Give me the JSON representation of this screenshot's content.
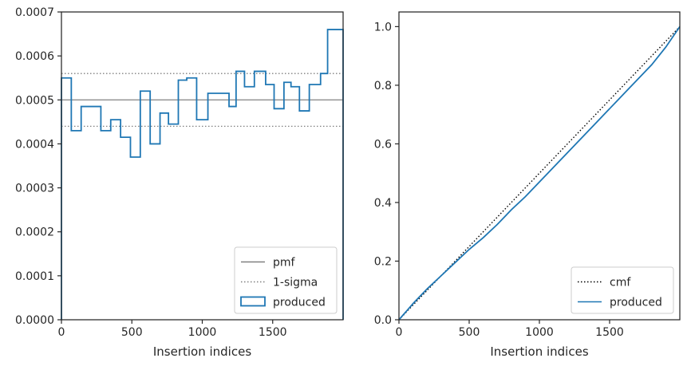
{
  "chart_data": [
    {
      "type": "histogram-step",
      "xlabel": "Insertion indices",
      "ylabel": "",
      "xlim": [
        0,
        2000
      ],
      "ylim": [
        0,
        0.0007
      ],
      "xticks": [
        0,
        500,
        1000,
        1500
      ],
      "xtick_labels": [
        "0",
        "500",
        "1000",
        "1500"
      ],
      "yticks": [
        0,
        0.0001,
        0.0002,
        0.0003,
        0.0004,
        0.0005,
        0.0006,
        0.0007
      ],
      "ytick_labels": [
        "0.0000",
        "0.0001",
        "0.0002",
        "0.0003",
        "0.0004",
        "0.0005",
        "0.0006",
        "0.0007"
      ],
      "grid": false,
      "legend_position": "lower-right",
      "lines": [
        {
          "name": "pmf",
          "y": 0.0005,
          "style": "solid",
          "color": "#808080"
        },
        {
          "name": "1-sigma",
          "y": [
            0.00044,
            0.00056
          ],
          "style": "dotted",
          "color": "#808080"
        }
      ],
      "series": [
        {
          "name": "produced",
          "color": "#1f77b4",
          "bin_edges": [
            0,
            70,
            140,
            280,
            350,
            420,
            490,
            560,
            630,
            700,
            760,
            830,
            890,
            960,
            1040,
            1190,
            1240,
            1300,
            1370,
            1450,
            1510,
            1580,
            1630,
            1690,
            1760,
            1840,
            1890,
            1930,
            2000
          ],
          "values": [
            0.00055,
            0.00043,
            0.000485,
            0.00043,
            0.000455,
            0.000415,
            0.00037,
            0.00052,
            0.0004,
            0.00047,
            0.000445,
            0.000545,
            0.00055,
            0.000455,
            0.000515,
            0.000485,
            0.000565,
            0.00053,
            0.000565,
            0.000535,
            0.00048,
            0.00054,
            0.00053,
            0.000475,
            0.000535,
            0.00056,
            0.00066,
            0.00066
          ]
        }
      ]
    },
    {
      "type": "line",
      "xlabel": "Insertion indices",
      "ylabel": "",
      "xlim": [
        0,
        2000
      ],
      "ylim": [
        0,
        1.05
      ],
      "xticks": [
        0,
        500,
        1000,
        1500
      ],
      "xtick_labels": [
        "0",
        "500",
        "1000",
        "1500"
      ],
      "yticks": [
        0,
        0.2,
        0.4,
        0.6,
        0.8,
        1.0
      ],
      "ytick_labels": [
        "0.0",
        "0.2",
        "0.4",
        "0.6",
        "0.8",
        "1.0"
      ],
      "grid": false,
      "legend_position": "lower-right",
      "series": [
        {
          "name": "cmf",
          "style": "dotted",
          "color": "#000000",
          "x": [
            0,
            2000
          ],
          "y": [
            0,
            1.0
          ]
        },
        {
          "name": "produced",
          "style": "solid",
          "color": "#1f77b4",
          "x": [
            0,
            100,
            200,
            300,
            400,
            500,
            600,
            700,
            800,
            900,
            1000,
            1100,
            1200,
            1300,
            1400,
            1500,
            1600,
            1700,
            1800,
            1900,
            2000
          ],
          "y": [
            0,
            0.055,
            0.105,
            0.15,
            0.195,
            0.24,
            0.28,
            0.325,
            0.375,
            0.42,
            0.47,
            0.52,
            0.57,
            0.62,
            0.67,
            0.72,
            0.77,
            0.82,
            0.87,
            0.93,
            1.0
          ]
        }
      ]
    }
  ]
}
